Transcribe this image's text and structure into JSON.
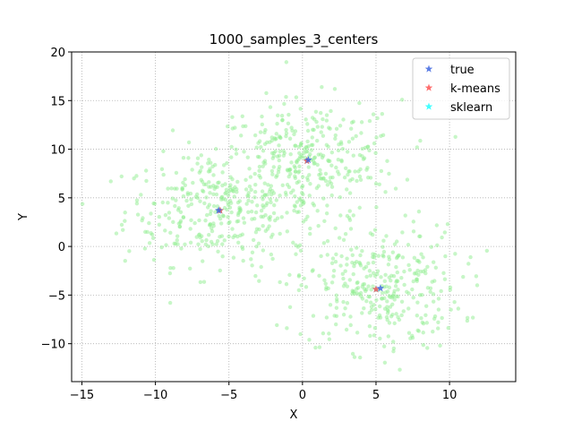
{
  "chart_data": {
    "type": "scatter",
    "title": "1000_samples_3_centers",
    "xlabel": "X",
    "ylabel": "Y",
    "xlim": [
      -15.7,
      14.5
    ],
    "ylim": [
      -13.9,
      20.0
    ],
    "xticks": [
      -15,
      -10,
      -5,
      0,
      5,
      10
    ],
    "yticks": [
      -10,
      -5,
      0,
      5,
      10,
      15,
      20
    ],
    "grid": true,
    "legend_position": "top-right",
    "sample_count": 1000,
    "point_color": "#90ee90",
    "clusters": [
      {
        "center": [
          -5.7,
          3.7
        ],
        "spread": [
          3.2,
          2.8
        ],
        "count": 334
      },
      {
        "center": [
          0.3,
          8.8
        ],
        "spread": [
          3.2,
          3.1
        ],
        "count": 333
      },
      {
        "center": [
          5.2,
          -4.3
        ],
        "spread": [
          2.8,
          3.2
        ],
        "count": 333
      }
    ],
    "series": [
      {
        "name": "true",
        "color": "#4169e1",
        "marker": "star",
        "points": [
          [
            -5.7,
            3.7
          ],
          [
            0.4,
            8.9
          ],
          [
            5.3,
            -4.3
          ]
        ]
      },
      {
        "name": "k-means",
        "color": "#ff5555",
        "marker": "star",
        "points": [
          [
            -5.6,
            3.7
          ],
          [
            0.3,
            8.8
          ],
          [
            5.0,
            -4.4
          ]
        ]
      },
      {
        "name": "sklearn",
        "color": "#22ffff",
        "marker": "star",
        "points": [
          [
            -5.6,
            3.7
          ],
          [
            0.3,
            8.8
          ],
          [
            5.0,
            -4.4
          ]
        ]
      }
    ]
  }
}
